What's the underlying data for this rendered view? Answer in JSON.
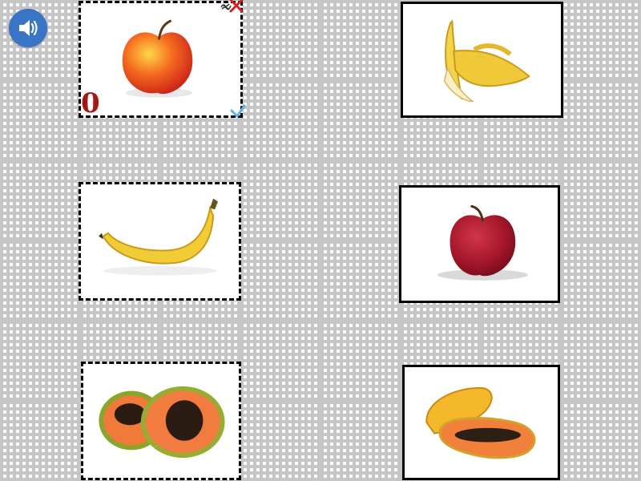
{
  "toolbar": {
    "sound_icon": "speaker-icon",
    "sound_color": "#3a74c4"
  },
  "left_column": [
    {
      "fruit": "apple-yellow-red",
      "icon": "apple-icon"
    },
    {
      "fruit": "banana",
      "icon": "banana-icon"
    },
    {
      "fruit": "papaya-halves",
      "icon": "papaya-icon"
    }
  ],
  "right_column": [
    {
      "fruit": "banana-peeled",
      "icon": "banana-icon"
    },
    {
      "fruit": "apple-red",
      "icon": "apple-icon"
    },
    {
      "fruit": "papaya-halves",
      "icon": "papaya-icon"
    }
  ],
  "marks": {
    "zero_text": "0",
    "zero_color": "#a51616",
    "cross_color": "#d32222",
    "check_color": "#5ab4e8"
  }
}
